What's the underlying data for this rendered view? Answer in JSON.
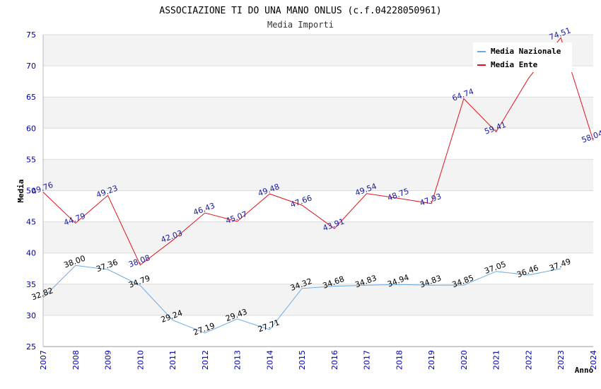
{
  "chart_data": {
    "type": "line",
    "title": "ASSOCIAZIONE TI DO UNA MANO ONLUS (c.f.04228050961)",
    "subtitle": "Media Importi",
    "xlabel": "Anno",
    "ylabel": "Media",
    "ylim": [
      25,
      75
    ],
    "yticks": [
      "25",
      "30",
      "35",
      "40",
      "45",
      "50",
      "55",
      "60",
      "65",
      "70",
      "75"
    ],
    "categories": [
      "2007",
      "2008",
      "2009",
      "2010",
      "2011",
      "2012",
      "2013",
      "2014",
      "2015",
      "2016",
      "2017",
      "2018",
      "2019",
      "2020",
      "2021",
      "2022",
      "2023",
      "2024"
    ],
    "grid": true,
    "legend_position": "top-right",
    "series": [
      {
        "name": "Media Nazionale",
        "color": "#6ca9e0",
        "values": [
          32.82,
          38.0,
          37.36,
          34.79,
          29.24,
          27.19,
          29.43,
          27.71,
          34.32,
          34.68,
          34.83,
          34.94,
          34.83,
          34.85,
          37.05,
          36.46,
          37.49,
          null
        ],
        "labels": [
          "32.82",
          "38.00",
          "37.36",
          "34.79",
          "29.24",
          "27.19",
          "29.43",
          "27.71",
          "34.32",
          "34.68",
          "34.83",
          "34.94",
          "34.83",
          "34.85",
          "37.05",
          "36.46",
          "37.49",
          null
        ]
      },
      {
        "name": "Media Ente",
        "color": "#e0141e",
        "values": [
          49.76,
          44.79,
          49.23,
          38.08,
          42.03,
          46.43,
          45.07,
          49.48,
          47.66,
          43.91,
          49.54,
          48.75,
          47.93,
          64.74,
          59.41,
          68.0,
          74.51,
          58.04
        ],
        "labels": [
          "49.76",
          "44.79",
          "49.23",
          "38.08",
          "42.03",
          "46.43",
          "45.07",
          "49.48",
          "47.66",
          "43.91",
          "49.54",
          "48.75",
          "47.93",
          "64.74",
          "59.41",
          null,
          "74.51",
          "58.04"
        ]
      }
    ]
  }
}
